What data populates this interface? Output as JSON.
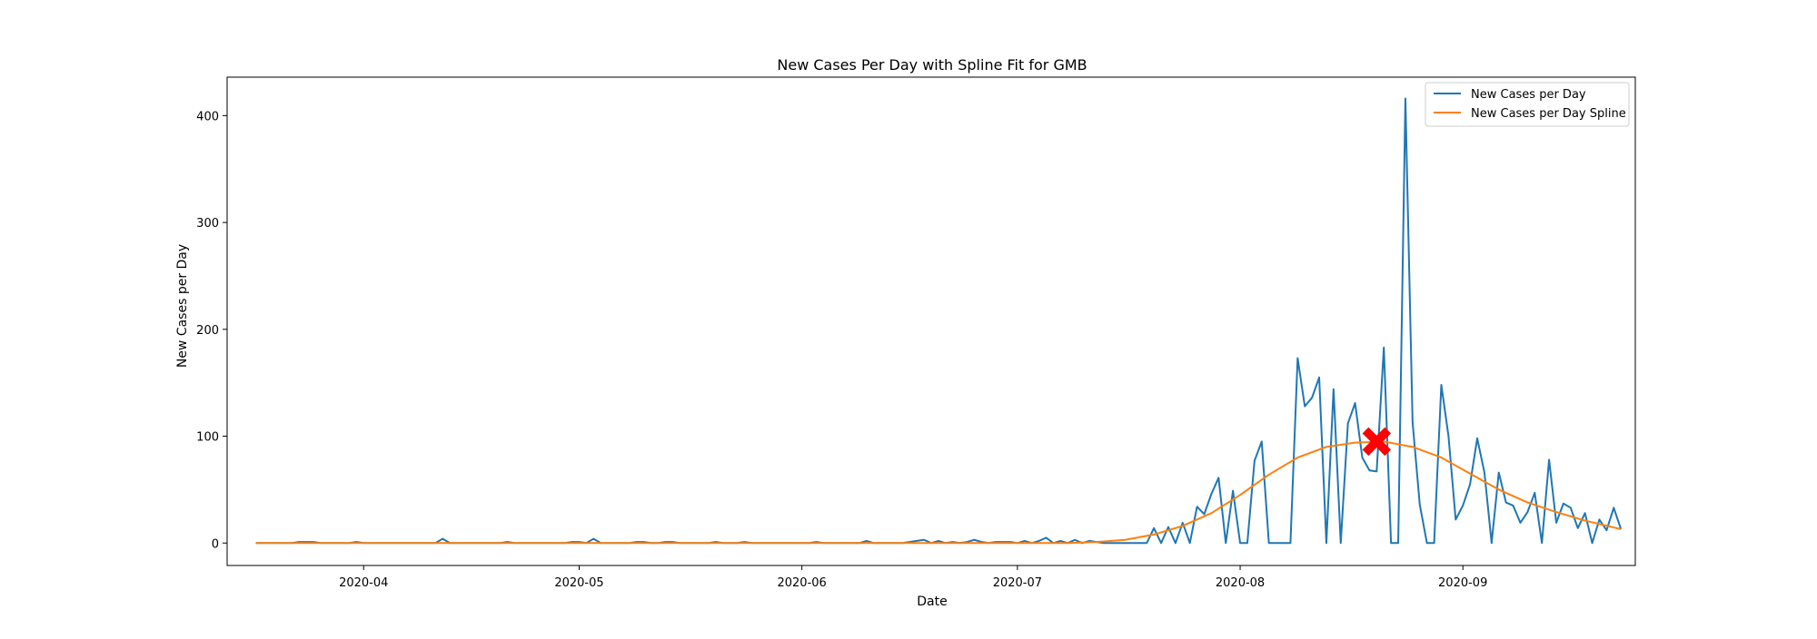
{
  "chart_data": {
    "type": "line",
    "title": "New Cases Per Day with Spline Fit for GMB",
    "xlabel": "Date",
    "ylabel": "New Cases per Day",
    "x_ticks": [
      "2020-04",
      "2020-05",
      "2020-06",
      "2020-07",
      "2020-08",
      "2020-09"
    ],
    "y_ticks": [
      "0",
      "100",
      "200",
      "300",
      "400"
    ],
    "xlim": [
      "2020-03-13",
      "2020-09-25"
    ],
    "ylim": [
      -21,
      436
    ],
    "grid": false,
    "legend_position": "top-right",
    "series": [
      {
        "name": "New Cases per Day",
        "color": "#1f77b4",
        "points": [
          [
            "2020-03-17",
            0
          ],
          [
            "2020-03-18",
            0
          ],
          [
            "2020-03-19",
            0
          ],
          [
            "2020-03-20",
            0
          ],
          [
            "2020-03-21",
            0
          ],
          [
            "2020-03-22",
            0
          ],
          [
            "2020-03-23",
            1
          ],
          [
            "2020-03-24",
            1
          ],
          [
            "2020-03-25",
            1
          ],
          [
            "2020-03-26",
            0
          ],
          [
            "2020-03-27",
            0
          ],
          [
            "2020-03-28",
            0
          ],
          [
            "2020-03-29",
            0
          ],
          [
            "2020-03-30",
            0
          ],
          [
            "2020-03-31",
            1
          ],
          [
            "2020-04-01",
            0
          ],
          [
            "2020-04-02",
            0
          ],
          [
            "2020-04-05",
            0
          ],
          [
            "2020-04-08",
            0
          ],
          [
            "2020-04-10",
            0
          ],
          [
            "2020-04-11",
            0
          ],
          [
            "2020-04-12",
            4
          ],
          [
            "2020-04-13",
            0
          ],
          [
            "2020-04-14",
            0
          ],
          [
            "2020-04-17",
            0
          ],
          [
            "2020-04-20",
            0
          ],
          [
            "2020-04-21",
            1
          ],
          [
            "2020-04-22",
            0
          ],
          [
            "2020-04-25",
            0
          ],
          [
            "2020-04-28",
            0
          ],
          [
            "2020-04-29",
            0
          ],
          [
            "2020-04-30",
            1
          ],
          [
            "2020-05-01",
            1
          ],
          [
            "2020-05-02",
            0
          ],
          [
            "2020-05-03",
            4
          ],
          [
            "2020-05-04",
            0
          ],
          [
            "2020-05-05",
            0
          ],
          [
            "2020-05-06",
            0
          ],
          [
            "2020-05-07",
            0
          ],
          [
            "2020-05-08",
            0
          ],
          [
            "2020-05-09",
            1
          ],
          [
            "2020-05-10",
            1
          ],
          [
            "2020-05-11",
            0
          ],
          [
            "2020-05-12",
            0
          ],
          [
            "2020-05-13",
            1
          ],
          [
            "2020-05-14",
            1
          ],
          [
            "2020-05-15",
            0
          ],
          [
            "2020-05-16",
            0
          ],
          [
            "2020-05-19",
            0
          ],
          [
            "2020-05-20",
            1
          ],
          [
            "2020-05-21",
            0
          ],
          [
            "2020-05-22",
            0
          ],
          [
            "2020-05-23",
            0
          ],
          [
            "2020-05-24",
            1
          ],
          [
            "2020-05-25",
            0
          ],
          [
            "2020-05-28",
            0
          ],
          [
            "2020-06-01",
            0
          ],
          [
            "2020-06-02",
            0
          ],
          [
            "2020-06-03",
            1
          ],
          [
            "2020-06-04",
            0
          ],
          [
            "2020-06-05",
            0
          ],
          [
            "2020-06-08",
            0
          ],
          [
            "2020-06-09",
            0
          ],
          [
            "2020-06-10",
            2
          ],
          [
            "2020-06-11",
            0
          ],
          [
            "2020-06-12",
            0
          ],
          [
            "2020-06-15",
            0
          ],
          [
            "2020-06-16",
            1
          ],
          [
            "2020-06-17",
            2
          ],
          [
            "2020-06-18",
            3
          ],
          [
            "2020-06-19",
            0
          ],
          [
            "2020-06-20",
            2
          ],
          [
            "2020-06-21",
            0
          ],
          [
            "2020-06-22",
            1
          ],
          [
            "2020-06-23",
            0
          ],
          [
            "2020-06-24",
            1
          ],
          [
            "2020-06-25",
            3
          ],
          [
            "2020-06-26",
            1
          ],
          [
            "2020-06-27",
            0
          ],
          [
            "2020-06-28",
            1
          ],
          [
            "2020-06-29",
            1
          ],
          [
            "2020-06-30",
            1
          ],
          [
            "2020-07-01",
            0
          ],
          [
            "2020-07-02",
            2
          ],
          [
            "2020-07-03",
            0
          ],
          [
            "2020-07-04",
            2
          ],
          [
            "2020-07-05",
            5
          ],
          [
            "2020-07-06",
            0
          ],
          [
            "2020-07-07",
            2
          ],
          [
            "2020-07-08",
            0
          ],
          [
            "2020-07-09",
            3
          ],
          [
            "2020-07-10",
            0
          ],
          [
            "2020-07-11",
            2
          ],
          [
            "2020-07-12",
            1
          ],
          [
            "2020-07-13",
            0
          ],
          [
            "2020-07-14",
            0
          ],
          [
            "2020-07-15",
            0
          ],
          [
            "2020-07-16",
            0
          ],
          [
            "2020-07-17",
            0
          ],
          [
            "2020-07-18",
            0
          ],
          [
            "2020-07-19",
            0
          ],
          [
            "2020-07-20",
            14
          ],
          [
            "2020-07-21",
            0
          ],
          [
            "2020-07-22",
            15
          ],
          [
            "2020-07-23",
            0
          ],
          [
            "2020-07-24",
            19
          ],
          [
            "2020-07-25",
            0
          ],
          [
            "2020-07-26",
            34
          ],
          [
            "2020-07-27",
            27
          ],
          [
            "2020-07-28",
            46
          ],
          [
            "2020-07-29",
            61
          ],
          [
            "2020-07-30",
            0
          ],
          [
            "2020-07-31",
            49
          ],
          [
            "2020-08-01",
            0
          ],
          [
            "2020-08-02",
            0
          ],
          [
            "2020-08-03",
            77
          ],
          [
            "2020-08-04",
            95
          ],
          [
            "2020-08-05",
            0
          ],
          [
            "2020-08-06",
            0
          ],
          [
            "2020-08-07",
            0
          ],
          [
            "2020-08-08",
            0
          ],
          [
            "2020-08-09",
            173
          ],
          [
            "2020-08-10",
            128
          ],
          [
            "2020-08-11",
            136
          ],
          [
            "2020-08-12",
            155
          ],
          [
            "2020-08-13",
            0
          ],
          [
            "2020-08-14",
            144
          ],
          [
            "2020-08-15",
            0
          ],
          [
            "2020-08-16",
            112
          ],
          [
            "2020-08-17",
            131
          ],
          [
            "2020-08-18",
            80
          ],
          [
            "2020-08-19",
            68
          ],
          [
            "2020-08-20",
            67
          ],
          [
            "2020-08-21",
            183
          ],
          [
            "2020-08-22",
            0
          ],
          [
            "2020-08-23",
            0
          ],
          [
            "2020-08-24",
            416
          ],
          [
            "2020-08-25",
            113
          ],
          [
            "2020-08-26",
            36
          ],
          [
            "2020-08-27",
            0
          ],
          [
            "2020-08-28",
            0
          ],
          [
            "2020-08-29",
            148
          ],
          [
            "2020-08-30",
            100
          ],
          [
            "2020-08-31",
            22
          ],
          [
            "2020-09-01",
            35
          ],
          [
            "2020-09-02",
            55
          ],
          [
            "2020-09-03",
            98
          ],
          [
            "2020-09-04",
            66
          ],
          [
            "2020-09-05",
            0
          ],
          [
            "2020-09-06",
            66
          ],
          [
            "2020-09-07",
            38
          ],
          [
            "2020-09-08",
            35
          ],
          [
            "2020-09-09",
            19
          ],
          [
            "2020-09-10",
            29
          ],
          [
            "2020-09-11",
            47
          ],
          [
            "2020-09-12",
            0
          ],
          [
            "2020-09-13",
            78
          ],
          [
            "2020-09-14",
            19
          ],
          [
            "2020-09-15",
            37
          ],
          [
            "2020-09-16",
            33
          ],
          [
            "2020-09-17",
            14
          ],
          [
            "2020-09-18",
            28
          ],
          [
            "2020-09-19",
            0
          ],
          [
            "2020-09-20",
            22
          ],
          [
            "2020-09-21",
            12
          ],
          [
            "2020-09-22",
            33
          ],
          [
            "2020-09-23",
            13
          ]
        ]
      },
      {
        "name": "New Cases per Day Spline",
        "color": "#ff7f0e",
        "points": [
          [
            "2020-03-17",
            0
          ],
          [
            "2020-07-08",
            0
          ],
          [
            "2020-07-12",
            1
          ],
          [
            "2020-07-16",
            3
          ],
          [
            "2020-07-20",
            8
          ],
          [
            "2020-07-24",
            16
          ],
          [
            "2020-07-28",
            28
          ],
          [
            "2020-08-01",
            45
          ],
          [
            "2020-08-05",
            64
          ],
          [
            "2020-08-09",
            80
          ],
          [
            "2020-08-13",
            90
          ],
          [
            "2020-08-17",
            94
          ],
          [
            "2020-08-21",
            95
          ],
          [
            "2020-08-25",
            90
          ],
          [
            "2020-08-29",
            80
          ],
          [
            "2020-09-02",
            65
          ],
          [
            "2020-09-06",
            50
          ],
          [
            "2020-09-10",
            38
          ],
          [
            "2020-09-14",
            29
          ],
          [
            "2020-09-18",
            21
          ],
          [
            "2020-09-23",
            13
          ]
        ]
      }
    ],
    "marker": {
      "x": "2020-08-20",
      "y": 95,
      "color": "#ff0000",
      "symbol": "X"
    }
  }
}
